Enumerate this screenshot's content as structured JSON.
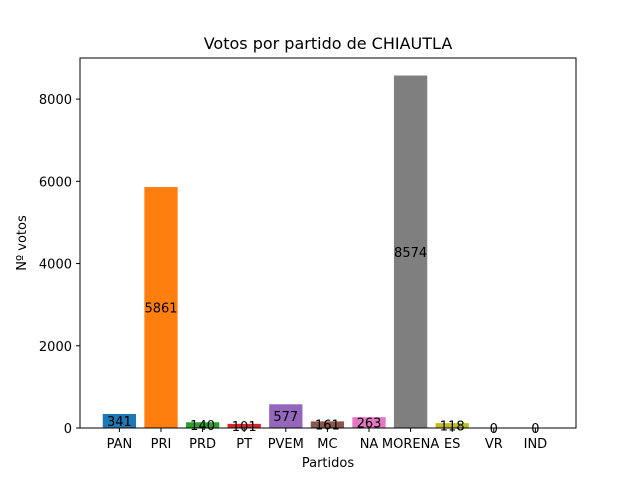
{
  "chart_data": {
    "type": "bar",
    "title": "Votos por partido de CHIAUTLA",
    "xlabel": "Partidos",
    "ylabel": "Nº votos",
    "categories": [
      "PAN",
      "PRI",
      "PRD",
      "PT",
      "PVEM",
      "MC",
      "NA",
      "MORENA",
      "ES",
      "VR",
      "IND"
    ],
    "values": [
      341,
      5861,
      140,
      101,
      577,
      161,
      263,
      8574,
      118,
      0,
      0
    ],
    "data_labels": [
      "341",
      "5861",
      "140",
      "101",
      "577",
      "161",
      "263",
      "8574",
      "118",
      "0",
      "0"
    ],
    "colors": [
      "#1f77b4",
      "#ff7f0e",
      "#2ca02c",
      "#d62728",
      "#9467bd",
      "#8c564b",
      "#e377c2",
      "#7f7f7f",
      "#bcbd22",
      "#17becf",
      "#1f77b4"
    ],
    "ylim": [
      0,
      9000
    ],
    "yticks": [
      0,
      2000,
      4000,
      6000,
      8000
    ],
    "ytick_labels": [
      "0",
      "2000",
      "4000",
      "6000",
      "8000"
    ],
    "grid": false,
    "legend": "none"
  }
}
